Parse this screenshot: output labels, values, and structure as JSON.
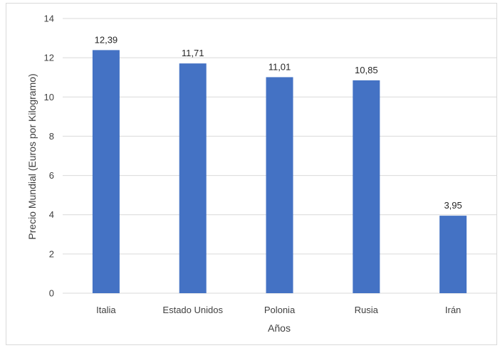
{
  "chart_data": {
    "type": "bar",
    "title": "",
    "xlabel": "Años",
    "ylabel": "Precio Mundial (Euros por Kilogramo)",
    "categories": [
      "Italia",
      "Estado Unidos",
      "Polonia",
      "Rusia",
      "Irán"
    ],
    "values": [
      12.39,
      11.71,
      11.01,
      10.85,
      3.95
    ],
    "value_labels": [
      "12,39",
      "11,71",
      "11,01",
      "10,85",
      "3,95"
    ],
    "ylim": [
      0,
      14
    ],
    "yticks": [
      0,
      2,
      4,
      6,
      8,
      10,
      12,
      14
    ],
    "grid": true,
    "legend": "none",
    "bar_color": "#4472c4",
    "grid_color": "#d9d9d9"
  }
}
